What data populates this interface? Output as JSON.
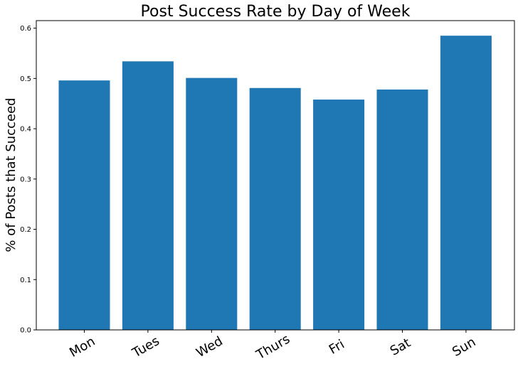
{
  "chart_data": {
    "type": "bar",
    "title": "Post Success Rate by Day of Week",
    "xlabel": "",
    "ylabel": "% of Posts that Succeed",
    "categories": [
      "Mon",
      "Tues",
      "Wed",
      "Thurs",
      "Fri",
      "Sat",
      "Sun"
    ],
    "values": [
      0.496,
      0.534,
      0.501,
      0.481,
      0.458,
      0.478,
      0.585
    ],
    "ylim": [
      0,
      0.615
    ],
    "yticks": [
      "0.0",
      "0.1",
      "0.2",
      "0.3",
      "0.4",
      "0.5",
      "0.6"
    ],
    "x_tick_rotation": "-30 degrees",
    "grid": false,
    "bar_color": "#1f77b4"
  }
}
